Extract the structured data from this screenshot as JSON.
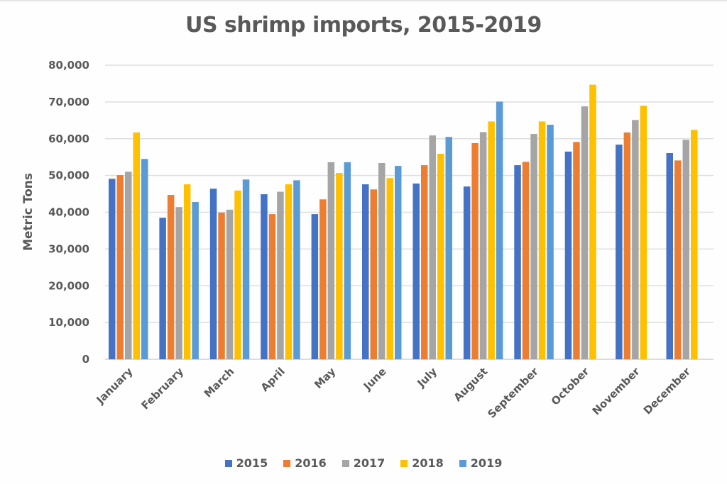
{
  "chart_data": {
    "type": "bar",
    "title": "US shrimp imports, 2015-2019",
    "xlabel": "",
    "ylabel": "Metric Tons",
    "ylim": [
      0,
      80000
    ],
    "yticks": [
      0,
      10000,
      20000,
      30000,
      40000,
      50000,
      60000,
      70000,
      80000
    ],
    "ytick_labels": [
      "0",
      "10,000",
      "20,000",
      "30,000",
      "40,000",
      "50,000",
      "60,000",
      "70,000",
      "80,000"
    ],
    "grid": true,
    "legend_position": "bottom",
    "categories": [
      "January",
      "February",
      "March",
      "April",
      "May",
      "June",
      "July",
      "August",
      "September",
      "October",
      "November",
      "December"
    ],
    "series": [
      {
        "name": "2015",
        "color": "#4472C4",
        "values": [
          49100,
          38500,
          46400,
          44900,
          39500,
          47600,
          47800,
          47000,
          52800,
          56500,
          58400,
          56100
        ]
      },
      {
        "name": "2016",
        "color": "#ED7D31",
        "values": [
          50100,
          44700,
          39900,
          39500,
          43500,
          46200,
          52800,
          58800,
          53700,
          59100,
          61700,
          54100
        ]
      },
      {
        "name": "2017",
        "color": "#A5A5A5",
        "values": [
          51000,
          41400,
          40700,
          45600,
          53600,
          53400,
          60900,
          61800,
          61300,
          68800,
          65100,
          59700
        ]
      },
      {
        "name": "2018",
        "color": "#FFC000",
        "values": [
          61700,
          47600,
          45900,
          47600,
          50700,
          49300,
          55900,
          64700,
          64700,
          74700,
          69000,
          62400
        ]
      },
      {
        "name": "2019",
        "color": "#5B9BD5",
        "values": [
          54500,
          42800,
          48900,
          48700,
          53600,
          52600,
          60500,
          70100,
          63800,
          null,
          null,
          null
        ]
      }
    ]
  }
}
